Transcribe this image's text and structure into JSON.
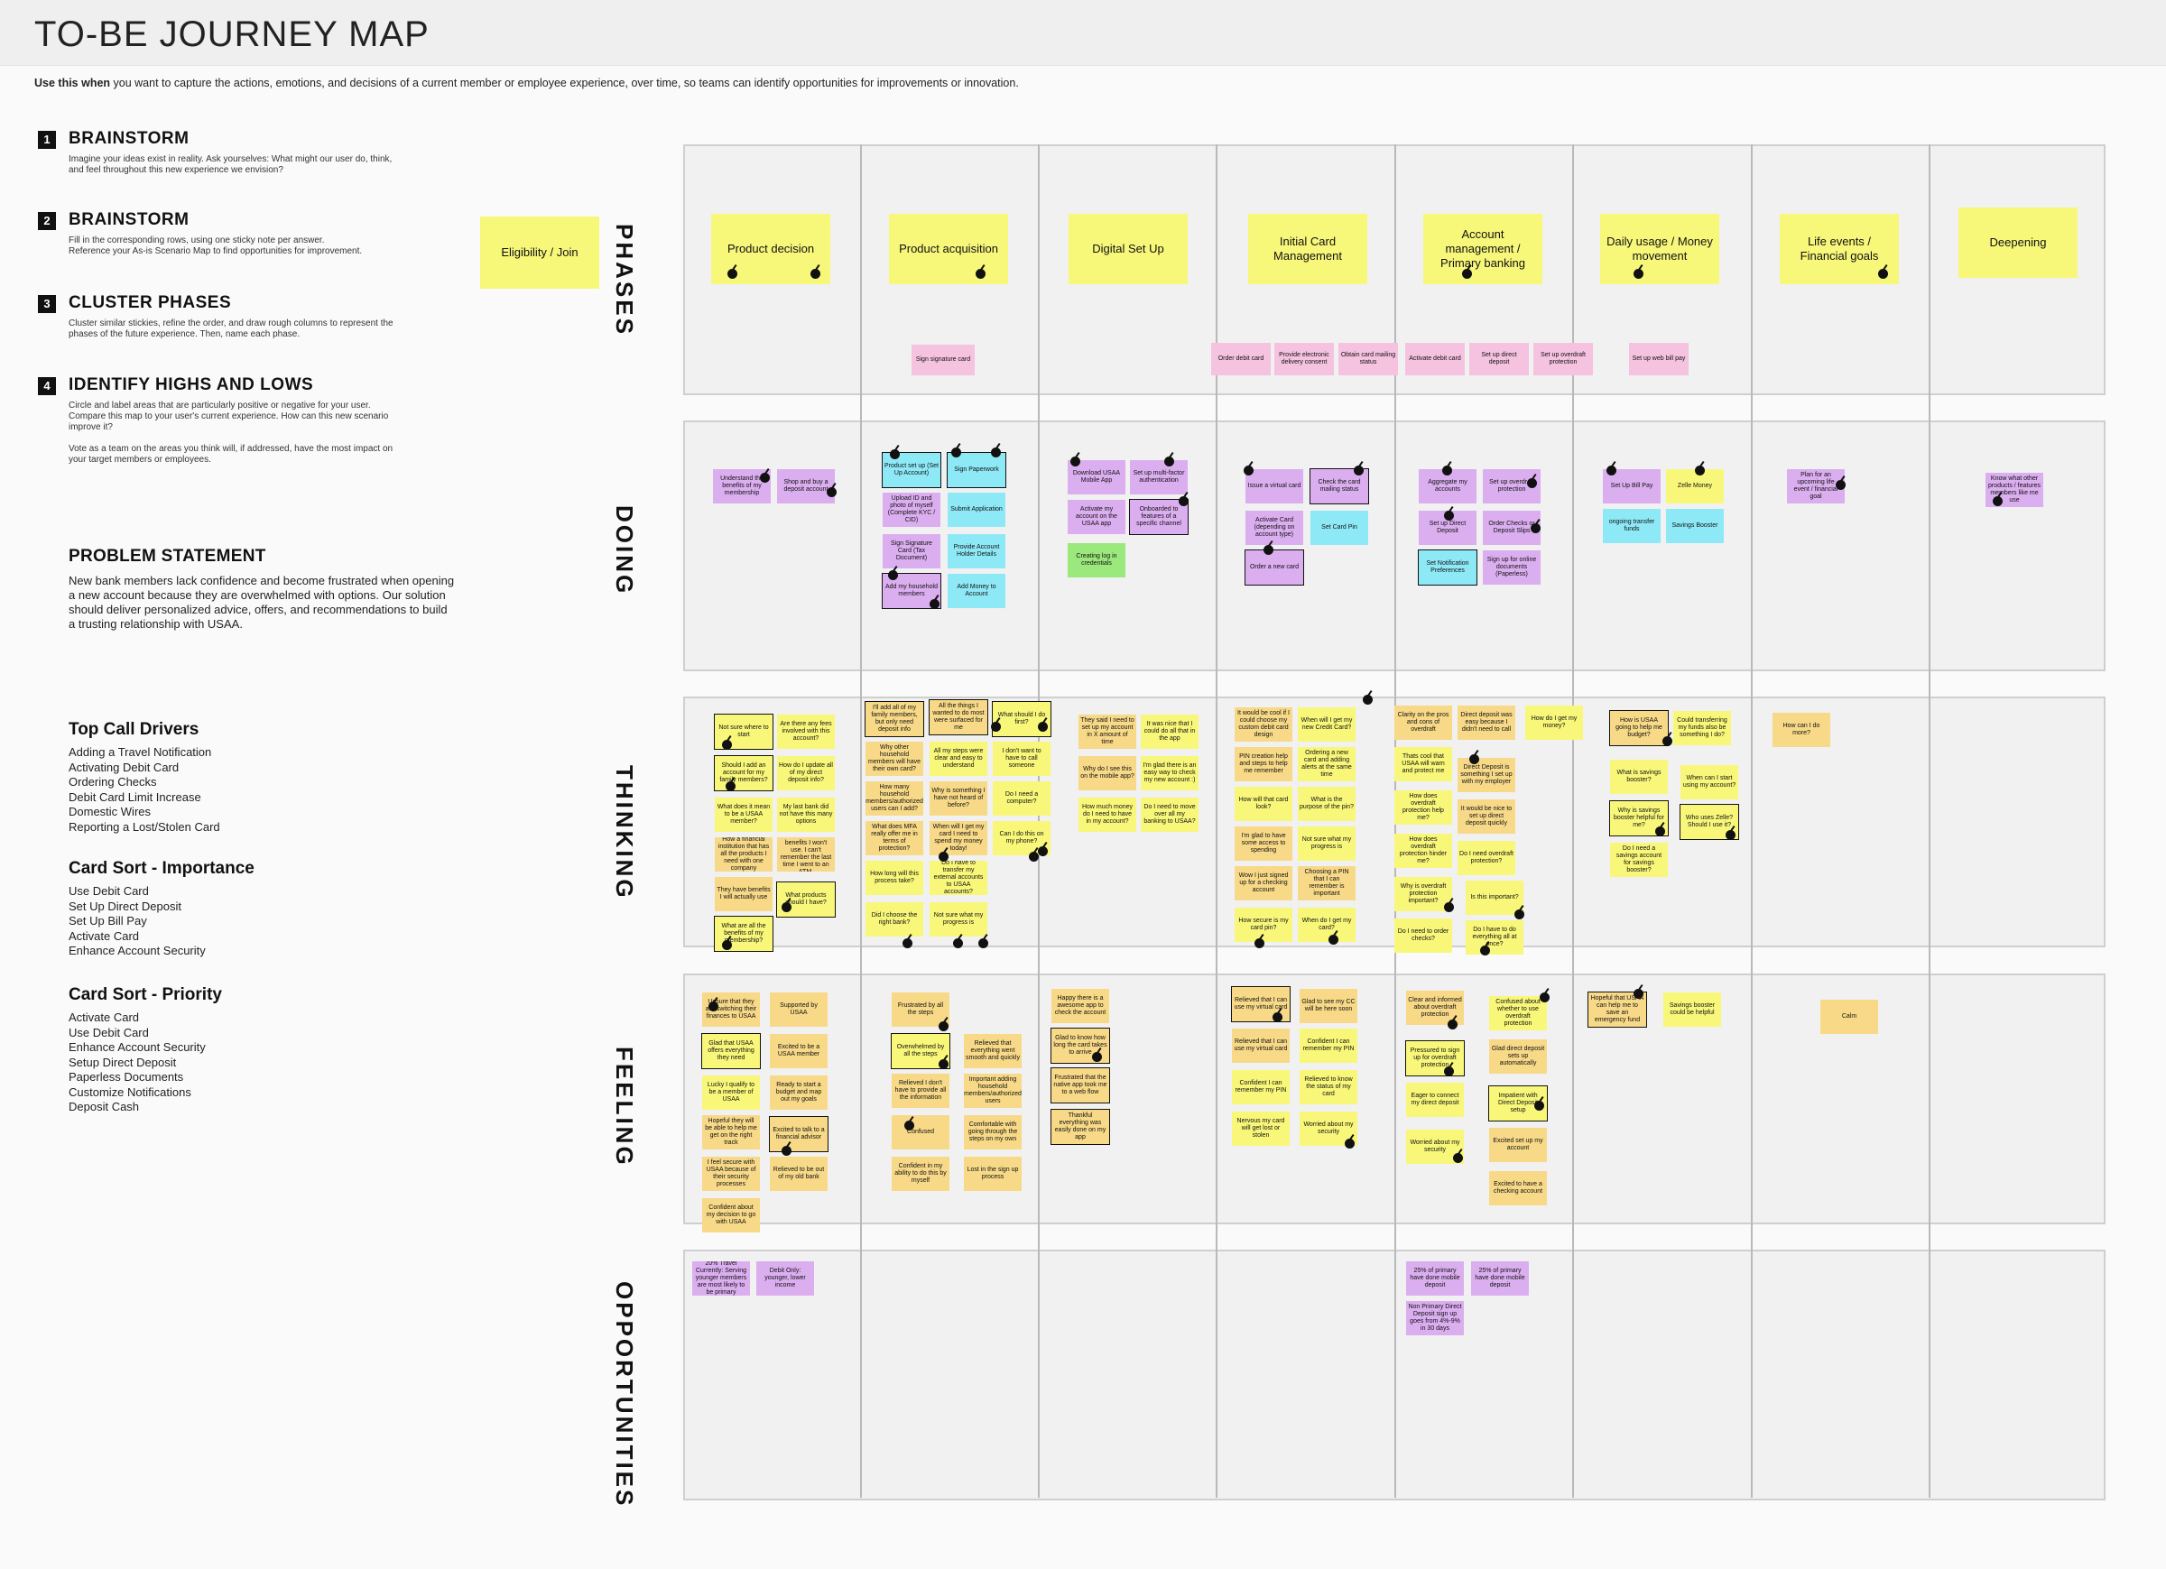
{
  "title": "TO-BE JOURNEY MAP",
  "intro": {
    "lead": "Use this when",
    "text": " you want to capture the actions, emotions, and decisions of a current member or employee experience, over time, so teams can identify opportunities for improvements or innovation."
  },
  "steps": [
    {
      "num": "1",
      "heading": "BRAINSTORM",
      "body": "Imagine your ideas exist in reality. Ask yourselves: What might our user do, think,\nand feel throughout this new experience we envision?"
    },
    {
      "num": "2",
      "heading": "BRAINSTORM",
      "body": "Fill in the corresponding rows, using one sticky note per answer.\nReference your As-is Scenario Map to find opportunities for improvement."
    },
    {
      "num": "3",
      "heading": "CLUSTER PHASES",
      "body": "Cluster similar stickies, refine the order, and draw rough columns to represent the\nphases of the future experience. Then, name each phase."
    },
    {
      "num": "4",
      "heading": "IDENTIFY HIGHS AND LOWS",
      "body": "Circle and label areas that are particularly positive or negative for your user.\nCompare this map to your user's current experience. How can this new scenario\nimprove it?\n\nVote as a team on the areas you think will, if addressed, have the most impact on\nyour target members or employees."
    }
  ],
  "problem": {
    "heading": "PROBLEM STATEMENT",
    "text": "New bank members lack confidence and become frustrated when opening a new account because they are overwhelmed with options. Our solution should deliver personalized advice, offers, and recommendations to build a trusting relationship with USAA."
  },
  "lists": [
    {
      "heading": "Top Call Drivers",
      "items": [
        "Adding a Travel Notification",
        "Activating Debit Card",
        "Ordering Checks",
        "Debit Card Limit Increase",
        "Domestic Wires",
        "Reporting a Lost/Stolen Card"
      ]
    },
    {
      "heading": "Card Sort - Importance",
      "items": [
        "Use Debit Card",
        "Set Up Direct Deposit",
        "Set Up Bill Pay",
        "Activate Card",
        "Enhance Account Security"
      ]
    },
    {
      "heading": "Card Sort - Priority",
      "items": [
        "Activate Card",
        "Use Debit Card",
        "Enhance Account Security",
        "Setup Direct Deposit",
        "Paperless Documents",
        "Customize Notifications",
        "Deposit Cash"
      ]
    }
  ],
  "row_labels": [
    "PHASES",
    "DOING",
    "THINKING",
    "FEELING",
    "OPPORTUNITIES"
  ],
  "eligibility": "Eligibility / Join",
  "phases": [
    "Product decision",
    "Product acquisition",
    "Digital Set Up",
    "Initial Card Management",
    "Account management / Primary banking",
    "Daily usage / Money movement",
    "Life events / Financial goals",
    "Deepening"
  ],
  "phase_tasks": [
    "Sign signature card",
    "Order debit card",
    "Provide electronic delivery consent",
    "Obtain card mailing status",
    "Activate debit card",
    "Set up direct deposit",
    "Set up overdraft protection",
    "Set up web bill pay"
  ],
  "doing": [
    "Understand the benefits of my membership",
    "Shop and buy a deposit account",
    "Product set up (Set Up Account)",
    "Sign Paperwork",
    "Upload ID and photo of myself (Complete KYC / CID)",
    "Submit Application",
    "Sign Signature Card (Tax Document)",
    "Provide Account Holder Details",
    "Add my household members",
    "Add Money to Account",
    "Download USAA Mobile App",
    "Set up multi-factor authentication",
    "Activate my account on the USAA app",
    "Onboarded to features of a specific channel",
    "Creating log in credentials",
    "Issue a virtual card",
    "Check the card mailing status",
    "Activate Card (depending on account type)",
    "Set Card Pin",
    "Order a new card",
    "Aggregate my accounts",
    "Set up overdraft protection",
    "Set up Direct Deposit",
    "Order Checks or Deposit Slips",
    "Set Notification Preferences",
    "Sign up for online documents (Paperless)",
    "Set Up Bill Pay",
    "Zelle Money",
    "ongoing transfer funds",
    "Savings Booster",
    "Plan for an upcoming life event / financial goal",
    "Know what other products / features members like me use"
  ],
  "thinking": [
    "Not sure where to start",
    "Are there any fees involved with this account?",
    "Should I add an account for my family members?",
    "How do I update all of my direct deposit info?",
    "What does it mean to be a USAA member?",
    "My last bank did not have this many options",
    "How a financial institution that has all the products I need with one company",
    "A lot of those benefits I won't use. I can't remember the last time I went to an ATM.",
    "They have benefits I will actually use",
    "What products should I have?",
    "What are all the benefits of my membership?",
    "I'll add all of my family members, but only need deposit info",
    "All the things I wanted to do most were surfaced for me",
    "What should I do first?",
    "Why other household members will have their own card?",
    "All my steps were clear and easy to understand",
    "I don't want to have to call someone",
    "How many household members/authorized users can I add?",
    "Why is something I have not heard of before?",
    "Do I need a computer?",
    "What does MFA really offer me in terms of protection?",
    "When will I get my card I need to spend my money today!",
    "Can I do this on my phone?",
    "How long will this process take?",
    "Do I have to transfer my external accounts to USAA accounts?",
    "Did I choose the right bank?",
    "Not sure what my progress is",
    "They said I need to set up my account in X amount of time",
    "It was nice that I could do all that in the app",
    "Why do I see this on the mobile app?",
    "I'm glad there is an easy way to check my new account :)",
    "How much money do I need to have in my account?",
    "Do I need to move over all my banking to USAA?",
    "It would be cool if I could choose my custom debit card design",
    "When will I get my new Credit Card?",
    "PIN creation help and steps to help me remember",
    "Ordering a new card and adding alerts at the same time",
    "How will that card look?",
    "What is the purpose of the pin?",
    "I'm glad to have some access to spending",
    "Not sure what my progress is",
    "Wow I just signed up for a checking account",
    "Choosing a PIN that I can remember is important",
    "How secure is my card pin?",
    "When do I get my card?",
    "Clarity on the pros and cons of overdraft",
    "Direct deposit was easy because I didn't need to call",
    "Thats cool that USAA will warn and protect me",
    "Direct Deposit is something I set up with my employer",
    "How does overdraft protection help me?",
    "It would be nice to set up direct deposit quickly",
    "How does overdraft protection hinder me?",
    "Do I need overdraft protection?",
    "Why is overdraft protection important?",
    "Is this important?",
    "Do I need to order checks?",
    "Do I have to do everything all at once?",
    "How do I get my money?",
    "How is USAA going to help me budget?",
    "Could transferring my funds also be something I do?",
    "What is savings booster?",
    "When can I start using my account?",
    "Why is savings booster helpful for me?",
    "Who uses Zelle? Should I use it?",
    "Do I need a savings account for savings booster?",
    "How can I do more?"
  ],
  "feeling": [
    "Unsure that they are switching their finances to USAA",
    "Supported by USAA",
    "Glad that USAA offers everything they need",
    "Excited to be a USAA member",
    "Lucky I qualify to be a member of USAA",
    "Ready to start a budget and map out my goals",
    "Hopeful they will be able to help me get on the right track",
    "Excited to talk to a financial advisor",
    "I feel secure with USAA because of their security processes",
    "Relieved to be out of my old bank",
    "Confident about my decision to go with USAA",
    "Frustrated by all the steps",
    "Overwhelmed by all the steps",
    "Relieved that everything went smooth and quickly",
    "Relieved I don't have to provide all the information",
    "Important adding household members/authorized users",
    "Confused",
    "Comfortable with going through the steps on my own",
    "Confident in my ability to do this by myself",
    "Lost in the sign up process",
    "Happy there is a awesome app to check the account",
    "Glad to know how long the card takes to arrive",
    "Frustrated that the native app took me to a web flow",
    "Thankful everything was easily done on my app",
    "Relieved that I can use my virtual card",
    "Glad to see my CC will be here soon",
    "Relieved that I can use my virtual card",
    "Confident I can remember my PIN",
    "Confident I can remember my PIN",
    "Relieved to know the status of my card",
    "Nervous my card will get lost or stolen",
    "Worried about my security",
    "Clear and informed about overdraft protection",
    "Confused about whether to use overdraft protection",
    "Pressured to sign up for overdraft protection",
    "Glad direct deposit sets up automatically",
    "Eager to connect my direct deposit",
    "Impatient with Direct Deposit setup",
    "Worried about my security",
    "Excited set up my account",
    "Excited to have a checking account",
    "Hopeful that USAA can help me to save an emergency fund",
    "Savings booster could be helpful",
    "Calm"
  ],
  "opportunities": [
    "20% Travel Currently: Serving younger members are most likely to be primary",
    "Debit Only: younger, lower income",
    "25% of primary have done mobile deposit",
    "25% of primary have done mobile deposit",
    "Non Primary Direct Deposit sign up goes from 4%-9% in 30 days"
  ]
}
